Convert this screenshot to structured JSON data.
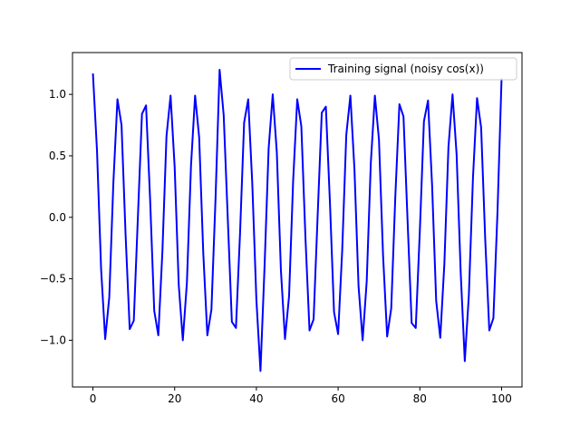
{
  "chart_data": {
    "type": "line",
    "x": [
      0,
      1,
      2,
      3,
      4,
      5,
      6,
      7,
      8,
      9,
      10,
      11,
      12,
      13,
      14,
      15,
      16,
      17,
      18,
      19,
      20,
      21,
      22,
      23,
      24,
      25,
      26,
      27,
      28,
      29,
      30,
      31,
      32,
      33,
      34,
      35,
      36,
      37,
      38,
      39,
      40,
      41,
      42,
      43,
      44,
      45,
      46,
      47,
      48,
      49,
      50,
      51,
      52,
      53,
      54,
      55,
      56,
      57,
      58,
      59,
      60,
      61,
      62,
      63,
      64,
      65,
      66,
      67,
      68,
      69,
      70,
      71,
      72,
      73,
      74,
      75,
      76,
      77,
      78,
      79,
      80,
      81,
      82,
      83,
      84,
      85,
      86,
      87,
      88,
      89,
      90,
      91,
      92,
      93,
      94,
      95,
      96,
      97,
      98,
      99,
      100
    ],
    "series": [
      {
        "name": "Training signal (noisy cos(x))",
        "color": "#0000ff",
        "values": [
          1.17,
          0.54,
          -0.42,
          -0.99,
          -0.65,
          0.28,
          0.96,
          0.75,
          -0.15,
          -0.91,
          -0.84,
          0.0,
          0.84,
          0.91,
          0.14,
          -0.76,
          -0.96,
          -0.28,
          0.66,
          0.99,
          0.41,
          -0.55,
          -1.0,
          -0.53,
          0.42,
          0.99,
          0.65,
          -0.29,
          -0.96,
          -0.75,
          0.15,
          1.2,
          0.83,
          -0.01,
          -0.85,
          -0.9,
          -0.13,
          0.77,
          0.96,
          0.27,
          -0.67,
          -1.25,
          -0.4,
          0.56,
          1.0,
          0.53,
          -0.43,
          -0.99,
          -0.64,
          0.3,
          0.96,
          0.74,
          -0.16,
          -0.92,
          -0.83,
          0.02,
          0.85,
          0.9,
          0.12,
          -0.77,
          -0.95,
          -0.27,
          0.67,
          0.99,
          0.39,
          -0.56,
          -1.0,
          -0.52,
          0.44,
          0.99,
          0.63,
          -0.31,
          -0.97,
          -0.74,
          0.17,
          0.92,
          0.82,
          -0.03,
          -0.86,
          -0.9,
          -0.11,
          0.78,
          0.95,
          0.26,
          -0.68,
          -0.98,
          -0.38,
          0.57,
          1.0,
          0.51,
          -0.45,
          -1.17,
          -0.63,
          0.32,
          0.97,
          0.73,
          -0.18,
          -0.92,
          -0.82,
          0.04,
          1.13
        ]
      }
    ],
    "xlim": [
      -5,
      105
    ],
    "xticks": [
      0,
      20,
      40,
      60,
      80,
      100
    ],
    "ylim": [
      -1.38,
      1.34
    ],
    "yticks": [
      {
        "value": -1.0,
        "label": "−1.0"
      },
      {
        "value": -0.5,
        "label": "−0.5"
      },
      {
        "value": 0,
        "label": "0.0"
      },
      {
        "value": 0.5,
        "label": "0.5"
      },
      {
        "value": 1.0,
        "label": "1.0"
      }
    ],
    "legend": "upper right"
  }
}
